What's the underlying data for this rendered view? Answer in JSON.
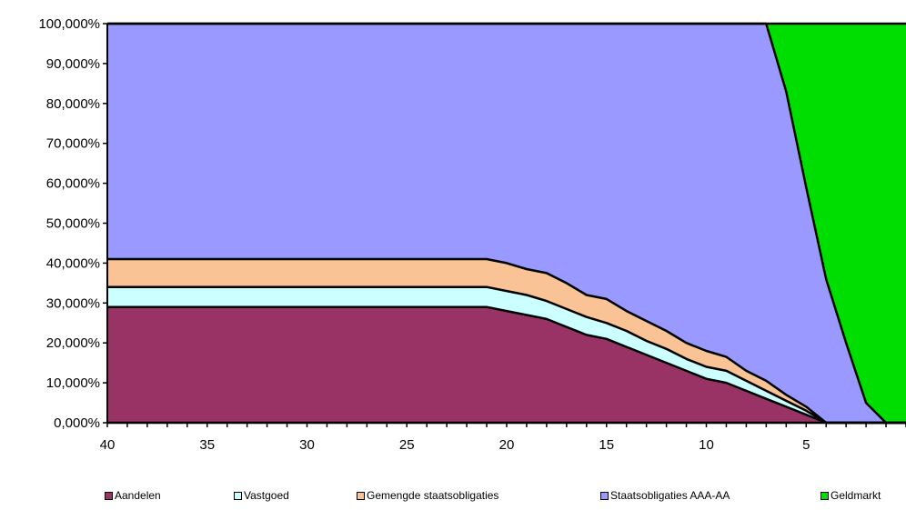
{
  "chart_data": {
    "type": "area",
    "stacked": true,
    "x_reversed": true,
    "xlim": [
      40,
      0
    ],
    "ylim": [
      0,
      100
    ],
    "y_tick_format": "percent-3dec-comma",
    "yticks": [
      "0,000%",
      "10,000%",
      "20,000%",
      "30,000%",
      "40,000%",
      "50,000%",
      "60,000%",
      "70,000%",
      "80,000%",
      "90,000%",
      "100,000%"
    ],
    "xticks": [
      "40",
      "35",
      "30",
      "25",
      "20",
      "15",
      "10",
      "5"
    ],
    "grid": false,
    "legend_position": "bottom",
    "x": [
      40,
      21,
      20,
      19,
      18,
      17,
      16,
      15,
      14,
      13,
      12,
      11,
      10,
      9,
      8,
      7,
      6,
      5,
      4,
      3,
      2,
      1,
      0
    ],
    "series": [
      {
        "name": "Aandelen",
        "color": "#993366",
        "values": [
          29,
          29,
          28,
          27,
          26,
          24,
          22,
          21,
          19,
          17,
          15,
          13,
          11,
          10,
          8,
          6,
          4,
          2,
          0,
          0,
          0,
          0,
          0
        ]
      },
      {
        "name": "Vastgoed",
        "color": "#ccffff",
        "values": [
          5,
          5,
          5,
          5,
          4.5,
          4.5,
          4.5,
          4,
          4,
          3.5,
          3.5,
          3,
          3,
          3,
          2.5,
          2,
          1.5,
          1,
          0,
          0,
          0,
          0,
          0
        ]
      },
      {
        "name": "Gemengde staatsobligaties",
        "color": "#f9c396",
        "values": [
          7,
          7,
          7,
          6.5,
          7,
          6.5,
          5.5,
          6,
          5,
          5,
          4.5,
          4,
          4,
          3.5,
          2.5,
          2.5,
          1.5,
          1,
          0,
          0,
          0,
          0,
          0
        ]
      },
      {
        "name": "Staatsobligaties AAA-AA",
        "color": "#9999ff",
        "values": [
          59,
          59,
          60,
          61.5,
          62.5,
          65,
          68,
          69,
          72,
          74.5,
          77,
          80,
          82,
          83.5,
          87,
          89.5,
          76,
          55,
          36,
          20,
          5,
          0,
          0
        ]
      },
      {
        "name": "Geldmarkt",
        "color": "#00dd00",
        "values": [
          0,
          0,
          0,
          0,
          0,
          0,
          0,
          0,
          0,
          0,
          0,
          0,
          0,
          0,
          0,
          0,
          17,
          41,
          64,
          80,
          95,
          100,
          100
        ]
      }
    ]
  }
}
